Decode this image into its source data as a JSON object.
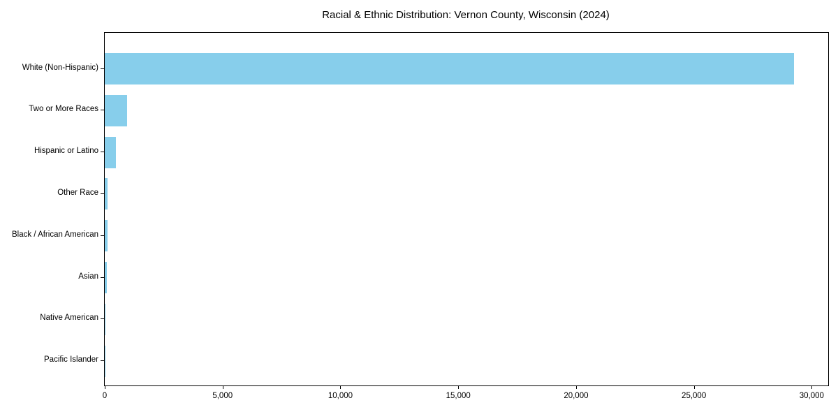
{
  "chart_data": {
    "type": "bar",
    "orientation": "horizontal",
    "title": "Racial & Ethnic Distribution: Vernon County, Wisconsin (2024)",
    "categories": [
      "White (Non-Hispanic)",
      "Two or More Races",
      "Hispanic or Latino",
      "Other Race",
      "Black / African American",
      "Asian",
      "Native American",
      "Pacific Islander"
    ],
    "values": [
      29250,
      940,
      480,
      120,
      130,
      100,
      30,
      10
    ],
    "bar_color": "#87CEEB",
    "xlabel": "",
    "ylabel": "",
    "xlim": [
      0,
      30700
    ],
    "xticks": [
      0,
      5000,
      10000,
      15000,
      20000,
      25000,
      30000
    ],
    "xtick_labels": [
      "0",
      "5,000",
      "10,000",
      "15,000",
      "20,000",
      "25,000",
      "30,000"
    ],
    "grid": false,
    "legend": null,
    "plot_background": "#ffffff",
    "spine_color": "#000000"
  }
}
